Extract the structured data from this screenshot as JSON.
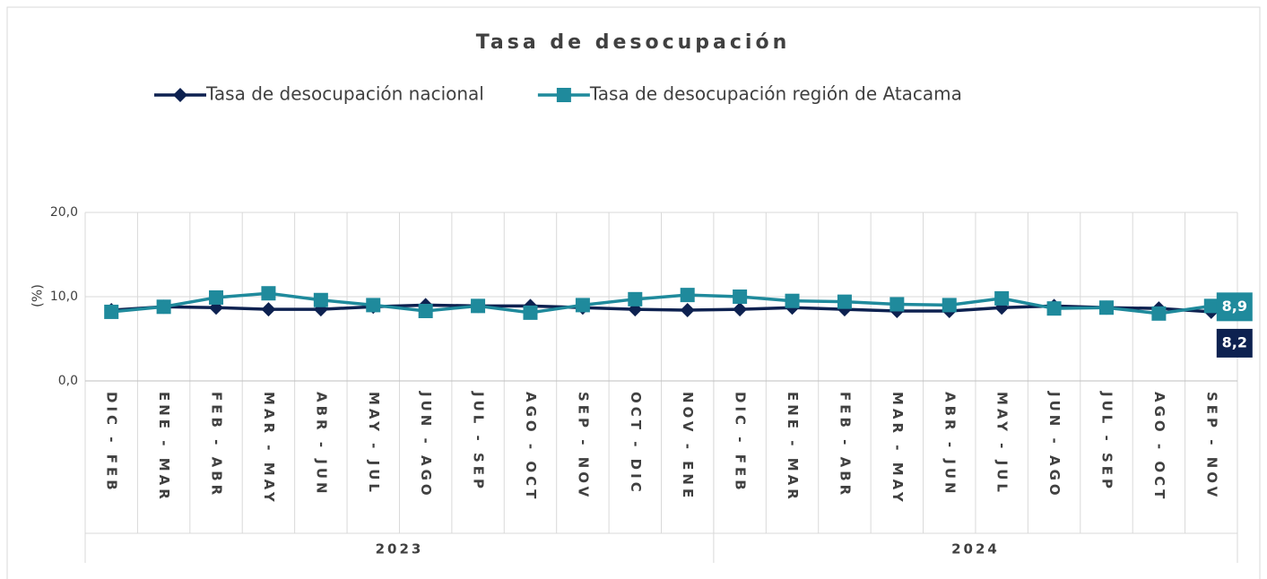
{
  "chart_data": {
    "type": "line",
    "title": "Tasa de desocupación",
    "y_label": "(%)",
    "categories": [
      "DIC - FEB",
      "ENE - MAR",
      "FEB - ABR",
      "MAR - MAY",
      "ABR - JUN",
      "MAY - JUL",
      "JUN - AGO",
      "JUL - SEP",
      "AGO - OCT",
      "SEP - NOV",
      "OCT - DIC",
      "NOV - ENE",
      "DIC - FEB",
      "ENE - MAR",
      "FEB - ABR",
      "MAR - MAY",
      "ABR - JUN",
      "MAY - JUL",
      "JUN - AGO",
      "JUL - SEP",
      "AGO - OCT",
      "SEP - NOV"
    ],
    "groups": [
      {
        "label": "2023",
        "count": 12
      },
      {
        "label": "2024",
        "count": 10
      }
    ],
    "series": [
      {
        "name": "Tasa de desocupación nacional",
        "color": "#0d2150",
        "marker": "diamond",
        "values": [
          8.4,
          8.8,
          8.7,
          8.5,
          8.5,
          8.8,
          9.0,
          8.9,
          8.9,
          8.7,
          8.5,
          8.4,
          8.5,
          8.7,
          8.5,
          8.3,
          8.3,
          8.7,
          8.9,
          8.7,
          8.6,
          8.2
        ],
        "value_labels": [
          null,
          null,
          null,
          null,
          null,
          null,
          null,
          null,
          null,
          null,
          null,
          null,
          null,
          null,
          null,
          null,
          null,
          null,
          null,
          null,
          null,
          "8,2"
        ]
      },
      {
        "name": "Tasa de desocupación región de Atacama",
        "color": "#1f8a9c",
        "marker": "square",
        "values": [
          8.2,
          8.8,
          9.9,
          10.4,
          9.6,
          9.0,
          8.3,
          8.9,
          8.1,
          9.0,
          9.7,
          10.2,
          10.0,
          9.5,
          9.4,
          9.1,
          9.0,
          9.8,
          8.6,
          8.7,
          8.0,
          8.9
        ],
        "value_labels": [
          null,
          null,
          null,
          null,
          null,
          null,
          null,
          null,
          null,
          null,
          null,
          null,
          null,
          null,
          null,
          null,
          null,
          null,
          null,
          null,
          null,
          "8,9"
        ]
      }
    ],
    "ylim": [
      0,
      20
    ],
    "yticks": [
      {
        "value": 0,
        "label": "0,0"
      },
      {
        "value": 10,
        "label": "10,0"
      },
      {
        "value": 20,
        "label": "20,0"
      }
    ],
    "grid": true,
    "legend": "top"
  }
}
